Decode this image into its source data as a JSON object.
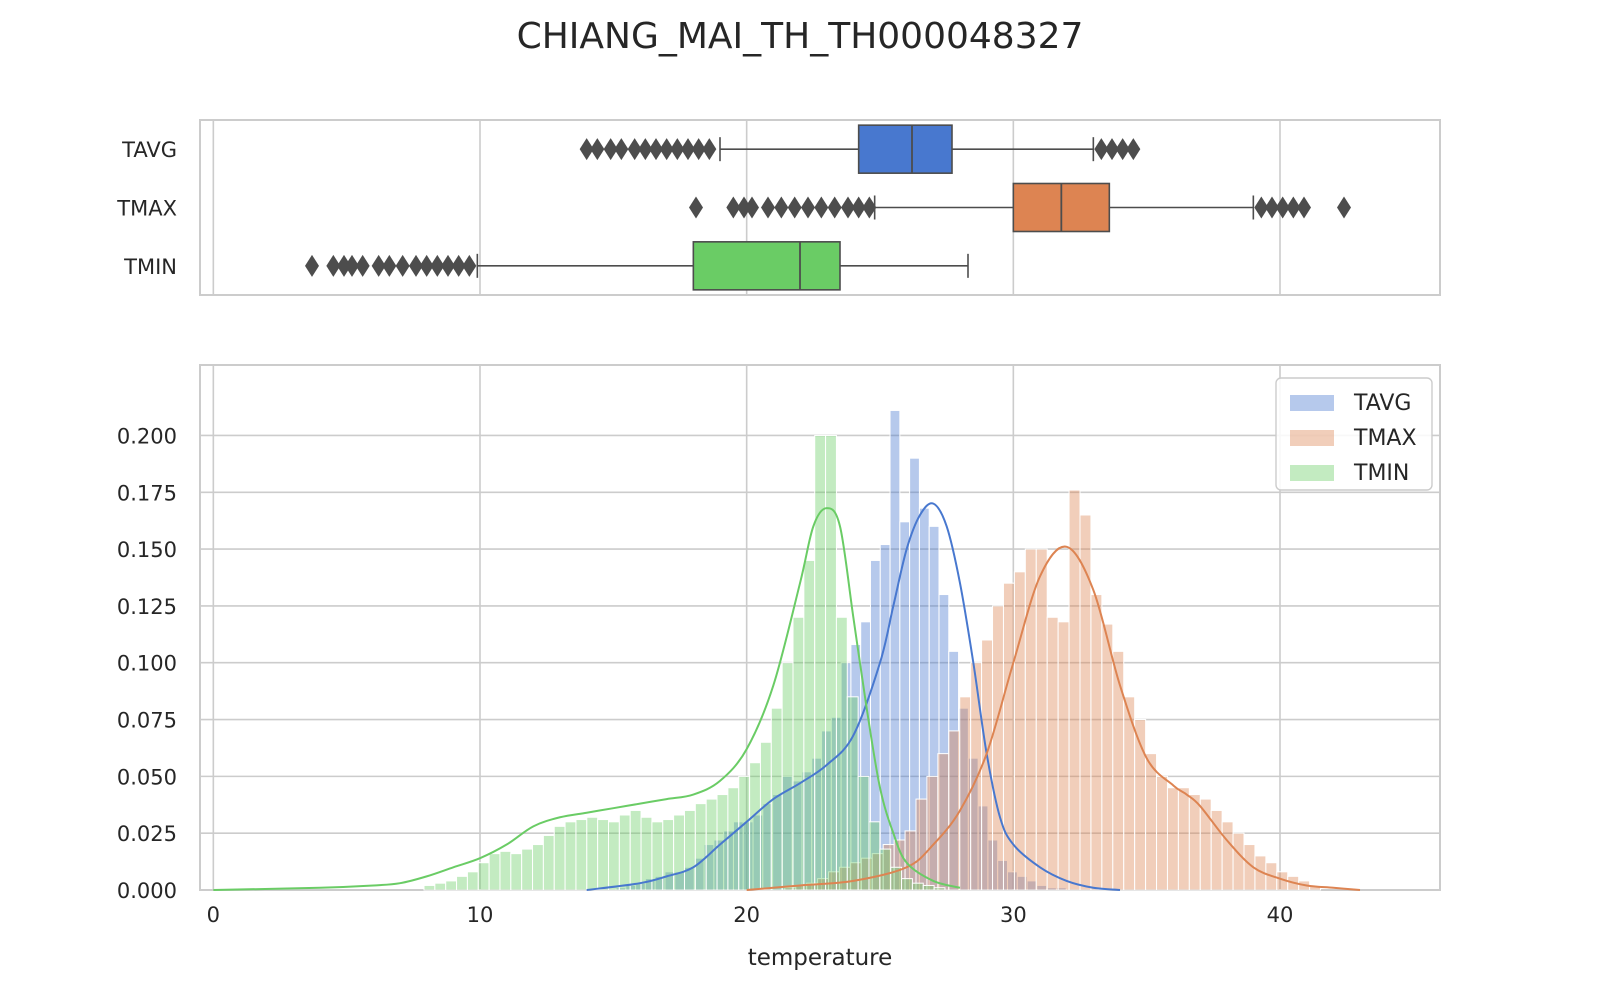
{
  "chart_data": {
    "type": "histogram",
    "title": "CHIANG_MAI_TH_TH000048327",
    "xlabel": "temperature",
    "xlim": [
      -0.5,
      46
    ],
    "x_ticks": [
      0,
      10,
      20,
      30,
      40
    ],
    "grid": true,
    "legend_position": "top-right",
    "colors": {
      "TAVG": "#4878cf",
      "TMAX": "#dd8452",
      "TMIN": "#6acc65"
    },
    "boxplot": {
      "categories": [
        "TAVG",
        "TMAX",
        "TMIN"
      ],
      "boxes": [
        {
          "name": "TAVG",
          "whisker_low": 19,
          "q1": 24.2,
          "median": 26.2,
          "q3": 27.7,
          "whisker_high": 33,
          "outliers": [
            14.0,
            14.4,
            14.9,
            15.3,
            15.8,
            16.2,
            16.6,
            17.0,
            17.4,
            17.8,
            18.2,
            18.6,
            33.3,
            33.7,
            34.1,
            34.5
          ]
        },
        {
          "name": "TMAX",
          "whisker_low": 24.8,
          "q1": 30.0,
          "median": 31.8,
          "q3": 33.6,
          "whisker_high": 39.0,
          "outliers": [
            18.1,
            19.5,
            19.9,
            20.2,
            20.8,
            21.3,
            21.8,
            22.3,
            22.8,
            23.3,
            23.8,
            24.2,
            24.6,
            39.3,
            39.7,
            40.1,
            40.5,
            40.9,
            42.4
          ]
        },
        {
          "name": "TMIN",
          "whisker_low": 9.9,
          "q1": 18.0,
          "median": 22.0,
          "q3": 23.5,
          "whisker_high": 28.3,
          "outliers": [
            3.7,
            4.5,
            4.9,
            5.2,
            5.6,
            6.2,
            6.6,
            7.1,
            7.6,
            8.0,
            8.4,
            8.8,
            9.2,
            9.6
          ]
        }
      ]
    },
    "histogram": {
      "ylim": [
        0,
        0.22
      ],
      "y_ticks": [
        0.0,
        0.025,
        0.05,
        0.075,
        0.1,
        0.125,
        0.15,
        0.175,
        0.2
      ],
      "y_tick_labels": [
        "0.000",
        "0.025",
        "0.050",
        "0.075",
        "0.100",
        "0.125",
        "0.150",
        "0.175",
        "0.200"
      ],
      "series": [
        {
          "name": "TAVG",
          "bin_width": 0.367,
          "bin_start": 14.0,
          "values": [
            0.0,
            0.0,
            0.0,
            0.001,
            0.002,
            0.003,
            0.005,
            0.006,
            0.008,
            0.008,
            0.01,
            0.014,
            0.02,
            0.022,
            0.026,
            0.03,
            0.03,
            0.033,
            0.038,
            0.042,
            0.05,
            0.048,
            0.052,
            0.058,
            0.07,
            0.076,
            0.1,
            0.108,
            0.118,
            0.145,
            0.152,
            0.211,
            0.162,
            0.19,
            0.168,
            0.16,
            0.13,
            0.105,
            0.08,
            0.058,
            0.037,
            0.022,
            0.013,
            0.008,
            0.006,
            0.004,
            0.002,
            0.001,
            0.001
          ],
          "kde_x": [
            14,
            16,
            17,
            18,
            19,
            20,
            21,
            22,
            23,
            24,
            25,
            25.5,
            26,
            26.5,
            27,
            27.5,
            28,
            28.5,
            29,
            29.5,
            30,
            31,
            32,
            33,
            34
          ],
          "kde_y": [
            0.0,
            0.003,
            0.006,
            0.01,
            0.02,
            0.03,
            0.04,
            0.047,
            0.055,
            0.068,
            0.1,
            0.125,
            0.15,
            0.165,
            0.17,
            0.16,
            0.135,
            0.1,
            0.06,
            0.032,
            0.02,
            0.01,
            0.004,
            0.001,
            0.0
          ]
        },
        {
          "name": "TMAX",
          "bin_width": 0.41,
          "bin_start": 20.2,
          "values": [
            0.0,
            0.0,
            0.0,
            0.001,
            0.002,
            0.003,
            0.005,
            0.008,
            0.01,
            0.012,
            0.014,
            0.016,
            0.02,
            0.022,
            0.026,
            0.04,
            0.05,
            0.06,
            0.07,
            0.085,
            0.1,
            0.11,
            0.125,
            0.135,
            0.14,
            0.15,
            0.15,
            0.12,
            0.118,
            0.176,
            0.165,
            0.13,
            0.117,
            0.105,
            0.085,
            0.075,
            0.06,
            0.05,
            0.045,
            0.045,
            0.042,
            0.04,
            0.035,
            0.03,
            0.025,
            0.02,
            0.015,
            0.012,
            0.008,
            0.006,
            0.004,
            0.002
          ],
          "kde_x": [
            20,
            22,
            24,
            26,
            27,
            28,
            29,
            30,
            31,
            32,
            33,
            34,
            35,
            36,
            36.5,
            37,
            38,
            39,
            40,
            41,
            42,
            43
          ],
          "kde_y": [
            0.0,
            0.002,
            0.004,
            0.01,
            0.02,
            0.035,
            0.06,
            0.1,
            0.138,
            0.151,
            0.132,
            0.09,
            0.058,
            0.046,
            0.042,
            0.037,
            0.022,
            0.01,
            0.005,
            0.002,
            0.001,
            0.0
          ]
        },
        {
          "name": "TMIN",
          "bin_width": 0.407,
          "bin_start": 7.9,
          "values": [
            0.002,
            0.003,
            0.004,
            0.006,
            0.008,
            0.012,
            0.016,
            0.017,
            0.016,
            0.018,
            0.02,
            0.024,
            0.028,
            0.03,
            0.031,
            0.032,
            0.031,
            0.03,
            0.033,
            0.035,
            0.032,
            0.03,
            0.031,
            0.033,
            0.035,
            0.038,
            0.04,
            0.042,
            0.045,
            0.05,
            0.056,
            0.065,
            0.08,
            0.1,
            0.12,
            0.145,
            0.2,
            0.2,
            0.12,
            0.085,
            0.05,
            0.03,
            0.018,
            0.01,
            0.005,
            0.003,
            0.002,
            0.001
          ],
          "kde_x": [
            0,
            4,
            6,
            7,
            8,
            9,
            10,
            11,
            12,
            13,
            14,
            15,
            16,
            17,
            18,
            19,
            20,
            21,
            22,
            22.5,
            23,
            23.5,
            24,
            24.5,
            25,
            25.5,
            26,
            27,
            28
          ],
          "kde_y": [
            0.0,
            0.001,
            0.002,
            0.003,
            0.006,
            0.01,
            0.014,
            0.02,
            0.028,
            0.032,
            0.034,
            0.036,
            0.038,
            0.04,
            0.042,
            0.048,
            0.062,
            0.09,
            0.135,
            0.16,
            0.168,
            0.16,
            0.12,
            0.08,
            0.045,
            0.025,
            0.012,
            0.004,
            0.001
          ]
        }
      ]
    }
  }
}
